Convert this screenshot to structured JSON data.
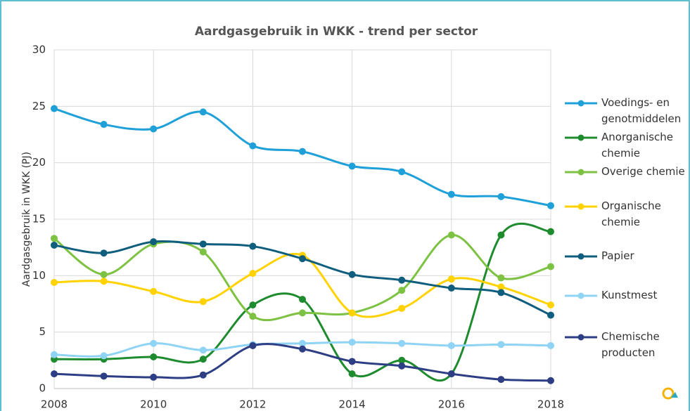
{
  "chart_data": {
    "type": "line",
    "title": "Aardgasgebruik in WKK - trend per sector",
    "y_label": "Aardgasgebruik in WKK (PJ)",
    "x": [
      2008,
      2009,
      2010,
      2011,
      2012,
      2013,
      2014,
      2015,
      2016,
      2017,
      2018
    ],
    "xlim": [
      2008,
      2018
    ],
    "xticks": [
      2008,
      2010,
      2012,
      2014,
      2016,
      2018
    ],
    "ylim": [
      0,
      30
    ],
    "yticks": [
      0,
      5,
      10,
      15,
      20,
      25,
      30
    ],
    "grid": true,
    "legend": "right",
    "series": [
      {
        "name": "Voedings- en genotmiddelen",
        "color": "#1fa0d8",
        "values": [
          24.8,
          23.4,
          23.0,
          24.5,
          21.5,
          21.0,
          19.7,
          19.2,
          17.2,
          17.0,
          16.2
        ]
      },
      {
        "name": "Anorganische chemie",
        "color": "#1e8c2e",
        "values": [
          2.6,
          2.6,
          2.8,
          2.6,
          7.4,
          7.9,
          1.3,
          2.5,
          1.3,
          13.6,
          13.9
        ]
      },
      {
        "name": "Overige chemie",
        "color": "#7dc242",
        "values": [
          13.3,
          10.1,
          12.8,
          12.1,
          6.4,
          6.7,
          6.7,
          8.7,
          13.6,
          9.8,
          10.8
        ]
      },
      {
        "name": "Organische chemie",
        "color": "#ffd200",
        "values": [
          9.4,
          9.5,
          8.6,
          7.7,
          10.2,
          11.8,
          6.7,
          7.1,
          9.7,
          9.0,
          7.4
        ]
      },
      {
        "name": "Papier",
        "color": "#0f5e7d",
        "values": [
          12.7,
          12.0,
          13.0,
          12.8,
          12.6,
          11.5,
          10.1,
          9.6,
          8.9,
          8.5,
          6.5
        ]
      },
      {
        "name": "Kunstmest",
        "color": "#8fd3f5",
        "values": [
          3.0,
          2.9,
          4.0,
          3.4,
          3.9,
          4.0,
          4.1,
          4.0,
          3.8,
          3.9,
          3.8
        ]
      },
      {
        "name": "Chemische producten",
        "color": "#2e3e84",
        "values": [
          1.3,
          1.1,
          1.0,
          1.2,
          3.8,
          3.5,
          2.4,
          2.0,
          1.3,
          0.8,
          0.7
        ]
      }
    ]
  }
}
